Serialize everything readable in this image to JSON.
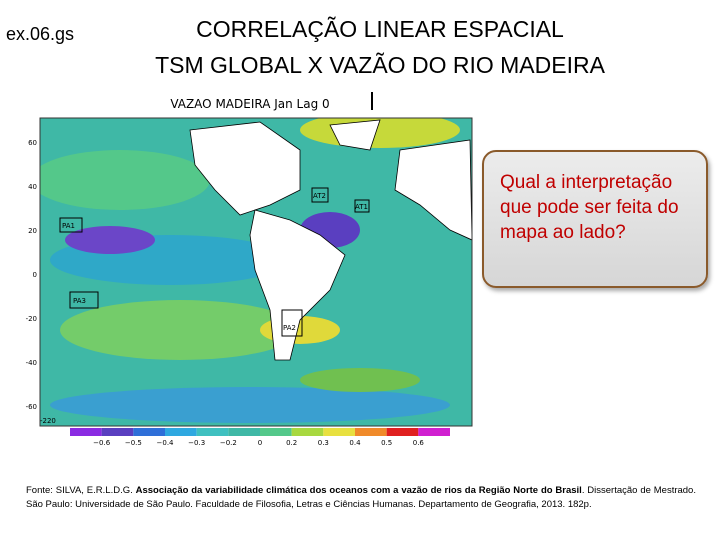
{
  "header": {
    "code": "ex.06.gs",
    "title_line1": "CORRELAÇÃO LINEAR ESPACIAL",
    "title_line2": "TSM GLOBAL X VAZÃO DO RIO MADEIRA"
  },
  "map": {
    "title": "VAZAO MADEIRA Jan Lag 0",
    "lat_labels": [
      "60",
      "40",
      "20",
      "0",
      "-20",
      "-40",
      "-60"
    ],
    "lon_labels": [
      "-220"
    ],
    "regions": [
      "PA1",
      "PA3",
      "PA2",
      "AT2",
      "AT1"
    ],
    "colorbar": {
      "labels": [
        "−0.6",
        "−0.5",
        "−0.4",
        "−0.3",
        "−0.2",
        "0",
        "0.2",
        "0.3",
        "0.4",
        "0.5",
        "0.6"
      ]
    }
  },
  "question": "Qual a interpretação que pode ser feita do mapa ao lado?",
  "source": {
    "prefix": "Fonte: SILVA, E.R.L.D.G. ",
    "bold": "Associação da variabilidade climática dos oceanos com a vazão de rios da Região Norte do Brasil",
    "suffix": ". Dissertação de Mestrado. São Paulo: Universidade de São Paulo. Faculdade de Filosofia, Letras e Ciências Humanas. Departamento de Geografia, 2013. 182p."
  }
}
